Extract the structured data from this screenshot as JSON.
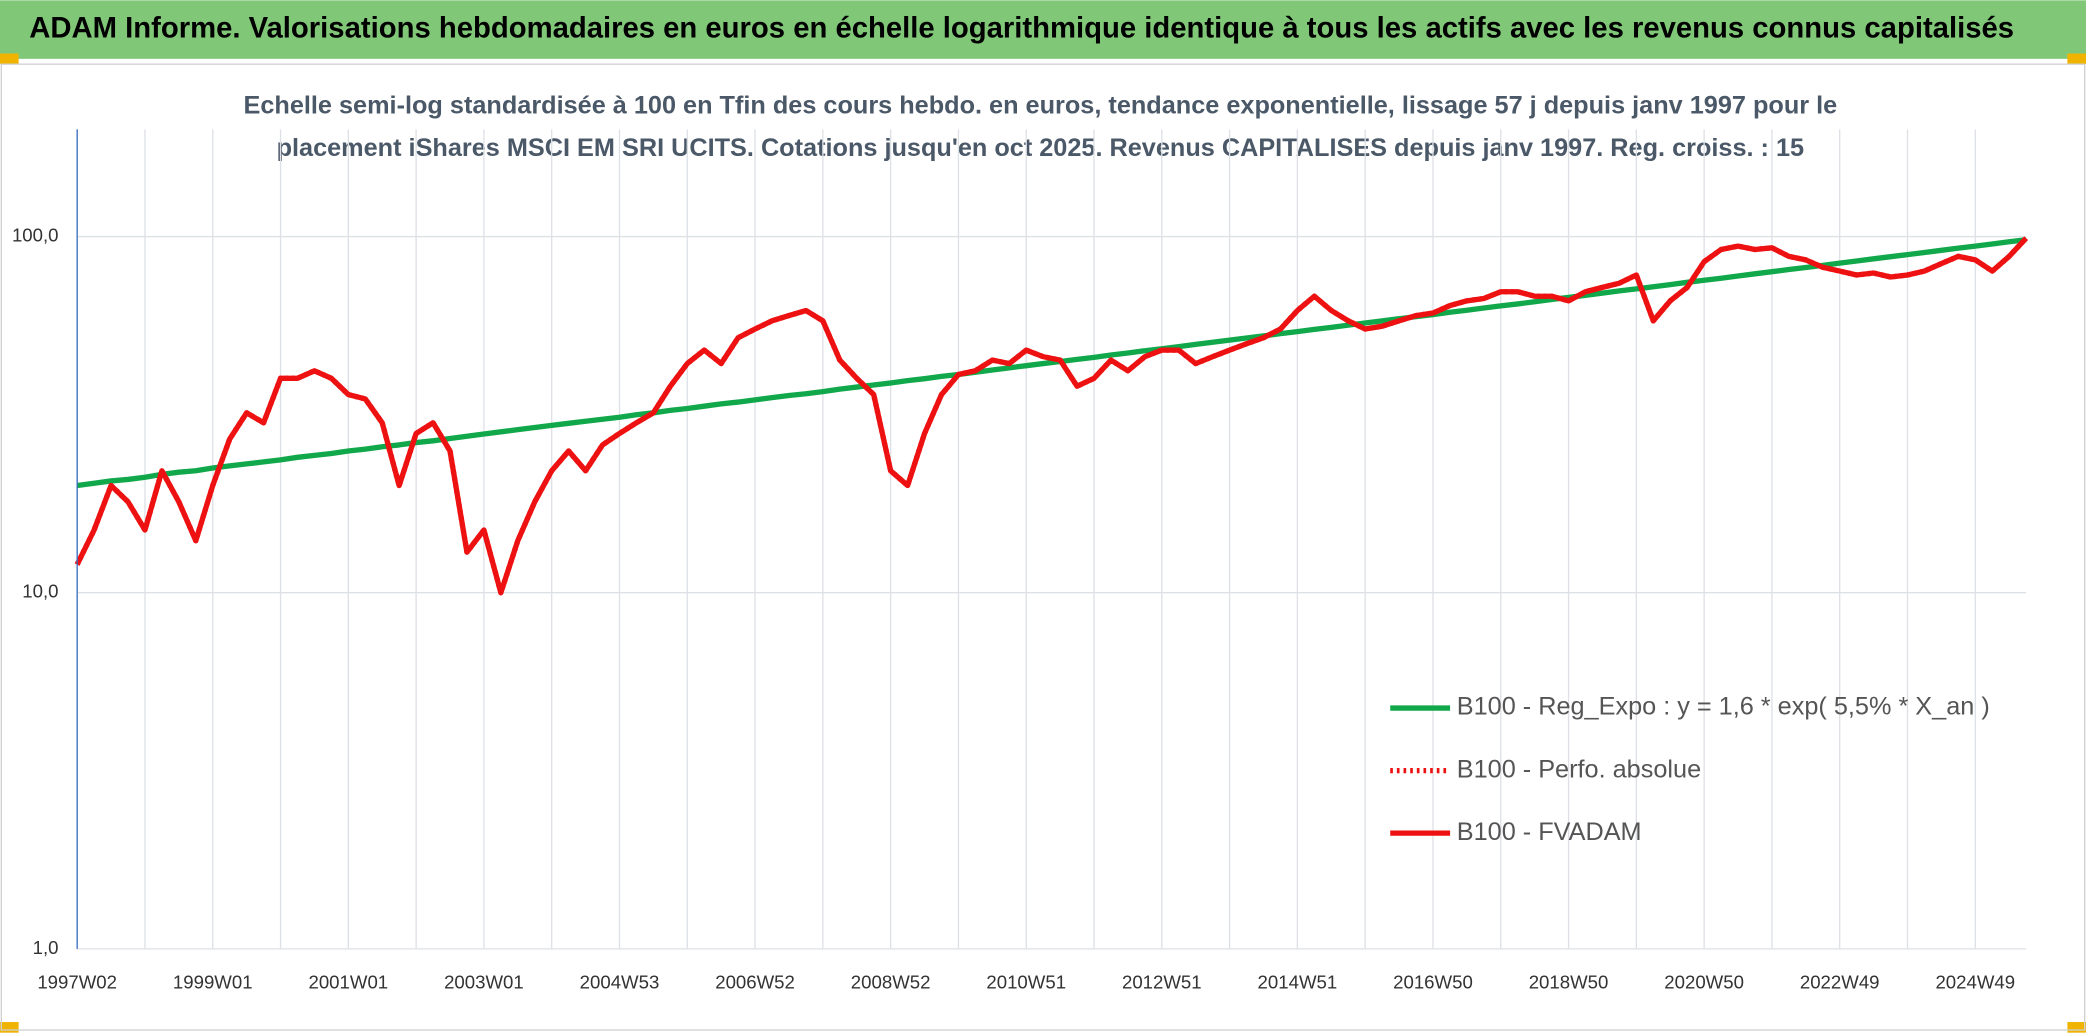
{
  "chart_data": {
    "type": "line",
    "header": "ADAM Informe. Valorisations hebdomadaires en euros en échelle logarithmique identique à tous les actifs avec les revenus connus capitalisés",
    "subtitle": [
      "Echelle semi-log standardisée à 100 en Tfin des cours hebdo. en euros, tendance exponentielle, lissage 57 j depuis janv 1997 pour le",
      "placement iShares MSCI EM SRI UCITS. Cotations jusqu'en oct 2025. Revenus CAPITALISES depuis janv 1997. Reg. croiss. : 15"
    ],
    "log_scale": true,
    "grid": true,
    "legend_position": "right",
    "ylim": [
      1,
      200
    ],
    "yticks": [
      {
        "value": 1,
        "label": "1,0"
      },
      {
        "value": 10,
        "label": "10,0"
      },
      {
        "value": 100,
        "label": "100,0"
      }
    ],
    "categories": [
      "1997W02",
      null,
      null,
      null,
      null,
      null,
      null,
      null,
      "1999W01",
      null,
      null,
      null,
      null,
      null,
      null,
      null,
      "2001W01",
      null,
      null,
      null,
      null,
      null,
      null,
      null,
      "2003W01",
      null,
      null,
      null,
      null,
      null,
      null,
      null,
      "2004W53",
      null,
      null,
      null,
      null,
      null,
      null,
      null,
      "2006W52",
      null,
      null,
      null,
      null,
      null,
      null,
      null,
      "2008W52",
      null,
      null,
      null,
      null,
      null,
      null,
      null,
      "2010W51",
      null,
      null,
      null,
      null,
      null,
      null,
      null,
      "2012W51",
      null,
      null,
      null,
      null,
      null,
      null,
      null,
      "2014W51",
      null,
      null,
      null,
      null,
      null,
      null,
      null,
      "2016W50",
      null,
      null,
      null,
      null,
      null,
      null,
      null,
      "2018W50",
      null,
      null,
      null,
      null,
      null,
      null,
      null,
      "2020W50",
      null,
      null,
      null,
      null,
      null,
      null,
      null,
      "2022W49",
      null,
      null,
      null,
      null,
      null,
      null,
      null,
      "2024W49",
      null,
      null,
      null
    ],
    "series": [
      {
        "name": "B100 - Reg_Expo : y = 1,6 * exp( 5,5% *  X_an )",
        "color": "#10a84a",
        "dash": "solid",
        "values": [
          20.0,
          20.3,
          20.6,
          20.8,
          21.1,
          21.5,
          21.8,
          22.0,
          22.4,
          22.7,
          23.0,
          23.3,
          23.6,
          24.0,
          24.3,
          24.6,
          25.0,
          25.3,
          25.7,
          26.0,
          26.4,
          26.7,
          27.1,
          27.5,
          27.9,
          28.3,
          28.7,
          29.1,
          29.5,
          29.9,
          30.3,
          30.7,
          31.1,
          31.6,
          32.0,
          32.5,
          32.9,
          33.4,
          33.9,
          34.3,
          34.8,
          35.3,
          35.8,
          36.2,
          36.7,
          37.3,
          37.8,
          38.3,
          38.8,
          39.4,
          39.9,
          40.5,
          41.0,
          41.6,
          42.2,
          42.8,
          43.4,
          44.0,
          44.6,
          45.2,
          45.8,
          46.5,
          47.1,
          47.8,
          48.4,
          49.1,
          49.8,
          50.5,
          51.2,
          51.9,
          52.6,
          53.4,
          54.1,
          54.9,
          55.6,
          56.4,
          57.2,
          58.0,
          58.8,
          59.6,
          60.4,
          61.3,
          62.1,
          63.0,
          63.9,
          64.7,
          65.6,
          66.6,
          67.5,
          68.4,
          69.4,
          70.4,
          71.3,
          72.3,
          73.3,
          74.4,
          75.4,
          76.4,
          77.5,
          78.6,
          79.7,
          80.8,
          81.9,
          83.0,
          84.2,
          85.4,
          86.6,
          87.8,
          89.0,
          90.2,
          91.5,
          92.8,
          94.0,
          95.3,
          96.7,
          98.0
        ]
      },
      {
        "name": "B100 - Perfo. absolue",
        "color": "#ee1111",
        "dash": "dotted",
        "values": [
          12,
          15,
          20,
          18,
          15,
          22,
          18,
          14,
          20,
          27,
          32,
          30,
          40,
          40,
          42,
          40,
          36,
          35,
          30,
          20,
          28,
          30,
          25,
          13,
          15,
          10,
          14,
          18,
          22,
          25,
          22,
          26,
          28,
          30,
          32,
          38,
          44,
          48,
          44,
          52,
          55,
          58,
          60,
          62,
          58,
          45,
          40,
          36,
          22,
          20,
          28,
          36,
          41,
          42,
          45,
          44,
          48,
          46,
          45,
          38,
          40,
          45,
          42,
          46,
          48,
          48,
          44,
          46,
          48,
          50,
          52,
          55,
          62,
          68,
          62,
          58,
          55,
          56,
          58,
          60,
          61,
          64,
          66,
          67,
          70,
          70,
          68,
          68,
          66,
          70,
          72,
          74,
          78,
          58,
          66,
          72,
          85,
          92,
          94,
          92,
          93,
          88,
          86,
          82,
          80,
          78,
          79,
          77,
          78,
          80,
          84,
          88,
          86,
          80,
          88,
          99
        ]
      },
      {
        "name": "B100 - FVADAM",
        "color": "#ee1111",
        "dash": "solid",
        "values": [
          12,
          15,
          20,
          18,
          15,
          22,
          18,
          14,
          20,
          27,
          32,
          30,
          40,
          40,
          42,
          40,
          36,
          35,
          30,
          20,
          28,
          30,
          25,
          13,
          15,
          10,
          14,
          18,
          22,
          25,
          22,
          26,
          28,
          30,
          32,
          38,
          44,
          48,
          44,
          52,
          55,
          58,
          60,
          62,
          58,
          45,
          40,
          36,
          22,
          20,
          28,
          36,
          41,
          42,
          45,
          44,
          48,
          46,
          45,
          38,
          40,
          45,
          42,
          46,
          48,
          48,
          44,
          46,
          48,
          50,
          52,
          55,
          62,
          68,
          62,
          58,
          55,
          56,
          58,
          60,
          61,
          64,
          66,
          67,
          70,
          70,
          68,
          68,
          66,
          70,
          72,
          74,
          78,
          58,
          66,
          72,
          85,
          92,
          94,
          92,
          93,
          88,
          86,
          82,
          80,
          78,
          79,
          77,
          78,
          80,
          84,
          88,
          86,
          80,
          88,
          99
        ]
      }
    ]
  }
}
